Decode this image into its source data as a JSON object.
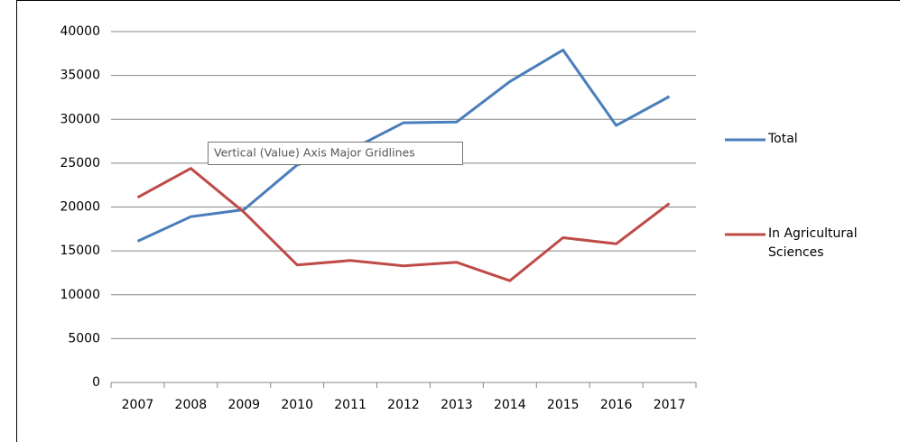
{
  "chart_data": {
    "type": "line",
    "categories": [
      "2007",
      "2008",
      "2009",
      "2010",
      "2011",
      "2012",
      "2013",
      "2014",
      "2015",
      "2016",
      "2017"
    ],
    "series": [
      {
        "name": "Total",
        "color": "#4a7ebb",
        "values": [
          16100,
          18900,
          19700,
          24800,
          26500,
          29600,
          29700,
          34300,
          37900,
          29300,
          32600
        ]
      },
      {
        "name": "In Agricultural Sciences",
        "color": "#be4b48",
        "values": [
          21100,
          24400,
          19400,
          13400,
          13900,
          13300,
          13700,
          11600,
          16500,
          15800,
          20400
        ]
      }
    ],
    "ylim": [
      0,
      40000
    ],
    "yticks": [
      0,
      5000,
      10000,
      15000,
      20000,
      25000,
      30000,
      35000,
      40000
    ],
    "grid": true,
    "legend": "right",
    "tooltip": "Vertical (Value) Axis Major Gridlines"
  }
}
